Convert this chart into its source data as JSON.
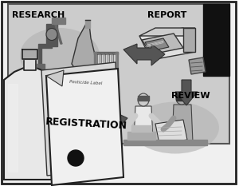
{
  "bg_color": "#ffffff",
  "border_color": "#222222",
  "inner_bg": "#d8d8d8",
  "arrow_color": "#444444",
  "label_fontsize": 8,
  "sub_label": "Pesticide Label",
  "registration_label": "REGISTRATION",
  "registration_fontsize": 9,
  "steps": [
    "RESEARCH",
    "REPORT",
    "REVIEW",
    "REGISTRATION"
  ]
}
